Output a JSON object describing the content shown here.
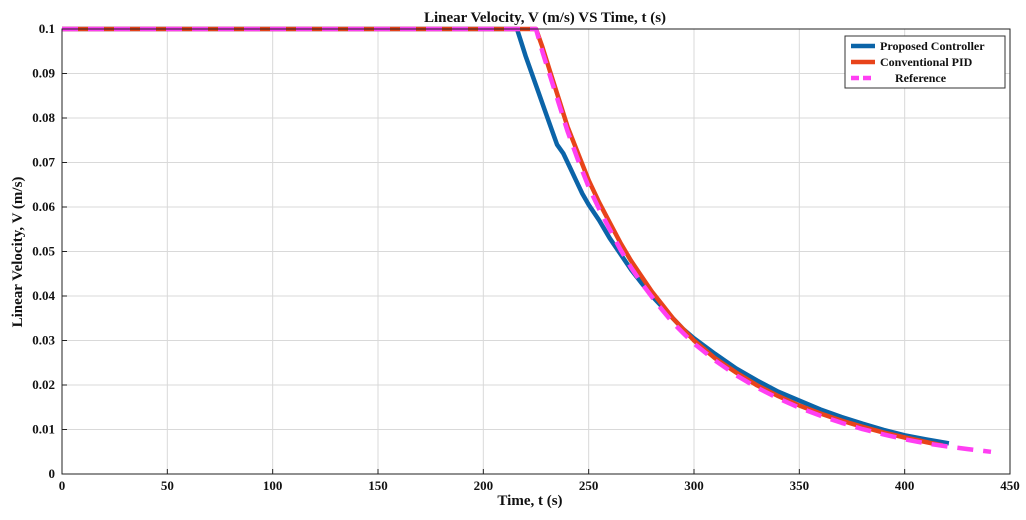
{
  "chart_data": {
    "type": "line",
    "title": "Linear Velocity, V (m/s) VS Time, t (s)",
    "xlabel": "Time, t (s)",
    "ylabel": "Linear Velocity, V (m/s)",
    "xlim": [
      0,
      450
    ],
    "ylim": [
      0,
      0.1
    ],
    "xticks": [
      "0",
      "50",
      "100",
      "150",
      "200",
      "250",
      "300",
      "350",
      "400",
      "450"
    ],
    "yticks": [
      "0",
      "0.01",
      "0.02",
      "0.03",
      "0.04",
      "0.05",
      "0.06",
      "0.07",
      "0.08",
      "0.09",
      "0.1"
    ],
    "grid": true,
    "legend_position": "top-right",
    "series": [
      {
        "name": "Proposed Controller",
        "color": "#0b64a8",
        "points": [
          [
            0,
            0.1
          ],
          [
            100,
            0.1
          ],
          [
            200,
            0.1
          ],
          [
            216,
            0.1
          ],
          [
            218,
            0.097
          ],
          [
            220,
            0.094
          ],
          [
            223,
            0.09
          ],
          [
            226,
            0.086
          ],
          [
            229,
            0.082
          ],
          [
            232,
            0.078
          ],
          [
            235,
            0.074
          ],
          [
            238,
            0.072
          ],
          [
            241,
            0.069
          ],
          [
            244,
            0.066
          ],
          [
            247,
            0.063
          ],
          [
            250,
            0.0605
          ],
          [
            255,
            0.057
          ],
          [
            260,
            0.053
          ],
          [
            265,
            0.0495
          ],
          [
            270,
            0.046
          ],
          [
            275,
            0.043
          ],
          [
            280,
            0.04
          ],
          [
            285,
            0.0375
          ],
          [
            290,
            0.035
          ],
          [
            295,
            0.0325
          ],
          [
            300,
            0.0305
          ],
          [
            310,
            0.027
          ],
          [
            320,
            0.0237
          ],
          [
            330,
            0.021
          ],
          [
            340,
            0.0185
          ],
          [
            350,
            0.0165
          ],
          [
            360,
            0.0145
          ],
          [
            370,
            0.0128
          ],
          [
            380,
            0.0113
          ],
          [
            390,
            0.0099
          ],
          [
            400,
            0.0087
          ],
          [
            410,
            0.0078
          ],
          [
            421,
            0.0069
          ]
        ]
      },
      {
        "name": "Conventional PID",
        "color": "#e8431a",
        "points": [
          [
            0,
            0.1
          ],
          [
            100,
            0.1
          ],
          [
            200,
            0.1
          ],
          [
            225,
            0.1
          ],
          [
            228,
            0.096
          ],
          [
            232,
            0.09
          ],
          [
            236,
            0.084
          ],
          [
            240,
            0.078
          ],
          [
            245,
            0.072
          ],
          [
            250,
            0.066
          ],
          [
            255,
            0.061
          ],
          [
            260,
            0.0565
          ],
          [
            265,
            0.052
          ],
          [
            270,
            0.048
          ],
          [
            275,
            0.0445
          ],
          [
            280,
            0.041
          ],
          [
            285,
            0.038
          ],
          [
            290,
            0.035
          ],
          [
            295,
            0.0325
          ],
          [
            300,
            0.03
          ],
          [
            310,
            0.026
          ],
          [
            320,
            0.0228
          ],
          [
            330,
            0.0199
          ],
          [
            340,
            0.0175
          ],
          [
            350,
            0.0154
          ],
          [
            360,
            0.0136
          ],
          [
            370,
            0.012
          ],
          [
            380,
            0.0106
          ],
          [
            390,
            0.0093
          ],
          [
            400,
            0.0082
          ],
          [
            410,
            0.0072
          ],
          [
            418,
            0.0064
          ]
        ]
      },
      {
        "name": "Reference",
        "color": "#ff3ff2",
        "points": [
          [
            0,
            0.1
          ],
          [
            100,
            0.1
          ],
          [
            200,
            0.1
          ],
          [
            225,
            0.1
          ],
          [
            228,
            0.095
          ],
          [
            232,
            0.089
          ],
          [
            236,
            0.083
          ],
          [
            240,
            0.077
          ],
          [
            245,
            0.0705
          ],
          [
            250,
            0.0645
          ],
          [
            255,
            0.0595
          ],
          [
            260,
            0.055
          ],
          [
            265,
            0.0505
          ],
          [
            270,
            0.0465
          ],
          [
            275,
            0.043
          ],
          [
            280,
            0.0398
          ],
          [
            285,
            0.0368
          ],
          [
            290,
            0.034
          ],
          [
            295,
            0.0316
          ],
          [
            300,
            0.0293
          ],
          [
            310,
            0.0255
          ],
          [
            320,
            0.0222
          ],
          [
            330,
            0.0194
          ],
          [
            340,
            0.017
          ],
          [
            350,
            0.0149
          ],
          [
            360,
            0.0131
          ],
          [
            370,
            0.0115
          ],
          [
            380,
            0.0101
          ],
          [
            390,
            0.0089
          ],
          [
            400,
            0.0078
          ],
          [
            410,
            0.0069
          ],
          [
            420,
            0.0062
          ],
          [
            430,
            0.0056
          ],
          [
            441,
            0.005
          ]
        ]
      }
    ]
  }
}
